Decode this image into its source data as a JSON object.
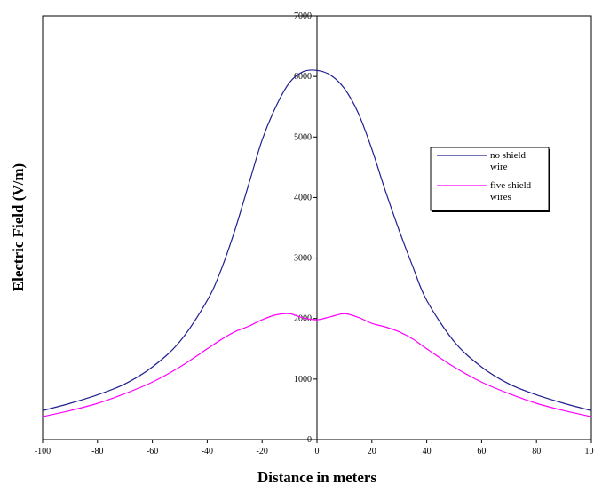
{
  "chart_data": {
    "type": "line",
    "title": "",
    "xlabel": "Distance in meters",
    "ylabel": "Electric  Field  (V/m)",
    "xlim": [
      -100,
      100
    ],
    "ylim": [
      0,
      7000
    ],
    "xticks": [
      -100,
      -80,
      -60,
      -40,
      -20,
      0,
      20,
      40,
      60,
      80,
      100
    ],
    "yticks": [
      0,
      1000,
      2000,
      3000,
      4000,
      5000,
      6000,
      7000
    ],
    "xtick_labels": [
      "-100",
      "-80",
      "-60",
      "-40",
      "-20",
      "0",
      "20",
      "40",
      "60",
      "80",
      "100"
    ],
    "ytick_labels": [
      "0",
      "1000",
      "2000",
      "3000",
      "4000",
      "5000",
      "6000",
      "7000"
    ],
    "grid": false,
    "legend_position": "right",
    "legend_border_color": "#000000",
    "axis_color": "#000000",
    "x": [
      -100,
      -90,
      -80,
      -70,
      -60,
      -50,
      -40,
      -35,
      -30,
      -25,
      -20,
      -15,
      -10,
      -5,
      0,
      5,
      10,
      15,
      20,
      25,
      30,
      35,
      40,
      50,
      60,
      70,
      80,
      90,
      100
    ],
    "series": [
      {
        "name": "no shield\nwire",
        "color": "#1f1f8f",
        "values": [
          480,
          600,
          740,
          920,
          1200,
          1620,
          2300,
          2800,
          3450,
          4200,
          4950,
          5500,
          5900,
          6080,
          6100,
          6020,
          5800,
          5400,
          4800,
          4100,
          3450,
          2850,
          2300,
          1620,
          1200,
          920,
          740,
          600,
          480
        ]
      },
      {
        "name": "five shield\nwires",
        "color": "#ff00ff",
        "values": [
          380,
          480,
          600,
          760,
          950,
          1200,
          1500,
          1650,
          1780,
          1870,
          1980,
          2060,
          2080,
          2010,
          1980,
          2030,
          2080,
          2020,
          1920,
          1860,
          1780,
          1660,
          1500,
          1200,
          950,
          760,
          600,
          480,
          380
        ]
      }
    ]
  }
}
